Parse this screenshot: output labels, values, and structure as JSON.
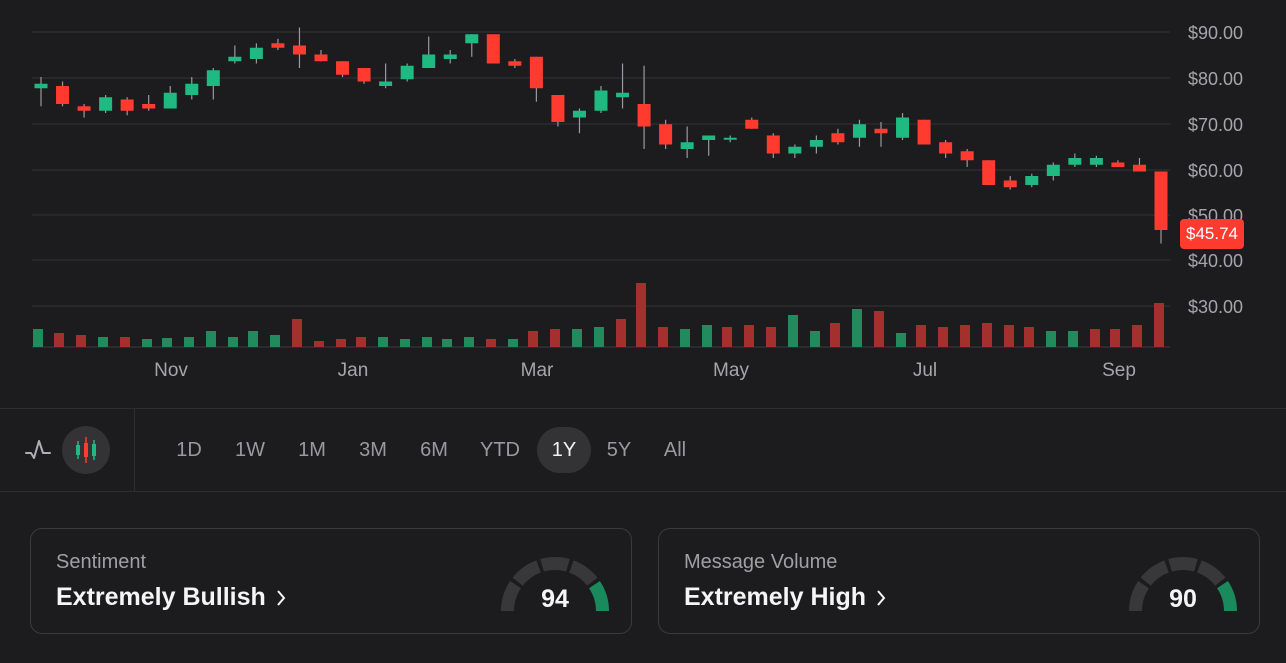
{
  "chart_data": {
    "type": "candlestick",
    "y_ticks": [
      "$90.00",
      "$80.00",
      "$70.00",
      "$60.00",
      "$50.00",
      "$40.00",
      "$30.00"
    ],
    "y_tick_values": [
      90,
      80,
      70,
      60,
      50,
      40,
      30
    ],
    "x_labels": [
      "Nov",
      "Jan",
      "Mar",
      "May",
      "Jul",
      "Sep"
    ],
    "last_price": "$45.74",
    "candles": [
      {
        "o": 77.5,
        "h": 80,
        "l": 73.5,
        "c": 78.5,
        "up": true
      },
      {
        "o": 78,
        "h": 79,
        "l": 73.5,
        "c": 74,
        "up": false
      },
      {
        "o": 73.5,
        "h": 74,
        "l": 71,
        "c": 72.5,
        "up": false
      },
      {
        "o": 72.5,
        "h": 76,
        "l": 72,
        "c": 75.5,
        "up": true
      },
      {
        "o": 75,
        "h": 75.5,
        "l": 71.5,
        "c": 72.5,
        "up": false
      },
      {
        "o": 74,
        "h": 76,
        "l": 72.5,
        "c": 73,
        "up": false
      },
      {
        "o": 73,
        "h": 78,
        "l": 73,
        "c": 76.5,
        "up": true
      },
      {
        "o": 76,
        "h": 80,
        "l": 75,
        "c": 78.5,
        "up": true
      },
      {
        "o": 78,
        "h": 82,
        "l": 75,
        "c": 81.5,
        "up": true
      },
      {
        "o": 83.5,
        "h": 87,
        "l": 83,
        "c": 84.5,
        "up": true
      },
      {
        "o": 84,
        "h": 87.5,
        "l": 83,
        "c": 86.5,
        "up": true
      },
      {
        "o": 87.5,
        "h": 88.5,
        "l": 86,
        "c": 86.5,
        "up": false
      },
      {
        "o": 87,
        "h": 91,
        "l": 82,
        "c": 85,
        "up": false
      },
      {
        "o": 85,
        "h": 86,
        "l": 83.5,
        "c": 83.5,
        "up": false
      },
      {
        "o": 83.5,
        "h": 83.5,
        "l": 80,
        "c": 80.5,
        "up": false
      },
      {
        "o": 82,
        "h": 82,
        "l": 78.5,
        "c": 79,
        "up": false
      },
      {
        "o": 78,
        "h": 83,
        "l": 77.5,
        "c": 79,
        "up": true
      },
      {
        "o": 79.5,
        "h": 83,
        "l": 79,
        "c": 82.5,
        "up": true
      },
      {
        "o": 82,
        "h": 89,
        "l": 82,
        "c": 85,
        "up": true
      },
      {
        "o": 84,
        "h": 86,
        "l": 83,
        "c": 85,
        "up": true
      },
      {
        "o": 87.5,
        "h": 89.5,
        "l": 84.5,
        "c": 89.5,
        "up": true
      },
      {
        "o": 89.5,
        "h": 89.5,
        "l": 83,
        "c": 83,
        "up": false
      },
      {
        "o": 83.5,
        "h": 84,
        "l": 82,
        "c": 82.5,
        "up": false
      },
      {
        "o": 84.5,
        "h": 84.5,
        "l": 74.5,
        "c": 77.5,
        "up": false
      },
      {
        "o": 76,
        "h": 76,
        "l": 69,
        "c": 70,
        "up": false
      },
      {
        "o": 71,
        "h": 73,
        "l": 67.5,
        "c": 72.5,
        "up": true
      },
      {
        "o": 72.5,
        "h": 78,
        "l": 72,
        "c": 77,
        "up": true
      },
      {
        "o": 75.5,
        "h": 83,
        "l": 73,
        "c": 76.5,
        "up": true
      },
      {
        "o": 74,
        "h": 82.5,
        "l": 64,
        "c": 69,
        "up": false
      },
      {
        "o": 69.5,
        "h": 70.5,
        "l": 64,
        "c": 65,
        "up": false
      },
      {
        "o": 64,
        "h": 69,
        "l": 62,
        "c": 65.5,
        "up": true
      },
      {
        "o": 66,
        "h": 67,
        "l": 62.5,
        "c": 67,
        "up": true
      },
      {
        "o": 66.5,
        "h": 67,
        "l": 65.5,
        "c": 66.5,
        "up": true
      },
      {
        "o": 70.5,
        "h": 71,
        "l": 68.5,
        "c": 68.5,
        "up": false
      },
      {
        "o": 67,
        "h": 67.5,
        "l": 62,
        "c": 63,
        "up": false
      },
      {
        "o": 63,
        "h": 65,
        "l": 62,
        "c": 64.5,
        "up": true
      },
      {
        "o": 64.5,
        "h": 67,
        "l": 63,
        "c": 66,
        "up": true
      },
      {
        "o": 67.5,
        "h": 68.5,
        "l": 65,
        "c": 65.5,
        "up": false
      },
      {
        "o": 66.5,
        "h": 70.5,
        "l": 64.5,
        "c": 69.5,
        "up": true
      },
      {
        "o": 68.5,
        "h": 70,
        "l": 64.5,
        "c": 67.5,
        "up": false
      },
      {
        "o": 66.5,
        "h": 72,
        "l": 66,
        "c": 71,
        "up": true
      },
      {
        "o": 70.5,
        "h": 70.5,
        "l": 65,
        "c": 65,
        "up": false
      },
      {
        "o": 65.5,
        "h": 66,
        "l": 62,
        "c": 63,
        "up": false
      },
      {
        "o": 63.5,
        "h": 64,
        "l": 60,
        "c": 61.5,
        "up": false
      },
      {
        "o": 61.5,
        "h": 61.5,
        "l": 56,
        "c": 56,
        "up": false
      },
      {
        "o": 57,
        "h": 58,
        "l": 55,
        "c": 55.5,
        "up": false
      },
      {
        "o": 56,
        "h": 58.5,
        "l": 55.5,
        "c": 58,
        "up": true
      },
      {
        "o": 58,
        "h": 61,
        "l": 57,
        "c": 60.5,
        "up": true
      },
      {
        "o": 60.5,
        "h": 63,
        "l": 60,
        "c": 62,
        "up": true
      },
      {
        "o": 60.5,
        "h": 62.5,
        "l": 60,
        "c": 62,
        "up": true
      },
      {
        "o": 61,
        "h": 61.5,
        "l": 60,
        "c": 60,
        "up": false
      },
      {
        "o": 60.5,
        "h": 62,
        "l": 59,
        "c": 59,
        "up": false
      },
      {
        "o": 59,
        "h": 59,
        "l": 43,
        "c": 46,
        "up": false
      }
    ],
    "volumes": [
      {
        "x": 38,
        "v": 18,
        "up": true
      },
      {
        "x": 59,
        "v": 14,
        "up": false
      },
      {
        "x": 81,
        "v": 12,
        "up": false
      },
      {
        "x": 103,
        "v": 10,
        "up": true
      },
      {
        "x": 125,
        "v": 10,
        "up": false
      },
      {
        "x": 147,
        "v": 8,
        "up": true
      },
      {
        "x": 167,
        "v": 9,
        "up": true
      },
      {
        "x": 189,
        "v": 10,
        "up": true
      },
      {
        "x": 211,
        "v": 16,
        "up": true
      },
      {
        "x": 233,
        "v": 10,
        "up": true
      },
      {
        "x": 253,
        "v": 16,
        "up": true
      },
      {
        "x": 275,
        "v": 12,
        "up": true
      },
      {
        "x": 297,
        "v": 28,
        "up": false
      },
      {
        "x": 319,
        "v": 6,
        "up": false
      },
      {
        "x": 341,
        "v": 8,
        "up": false
      },
      {
        "x": 361,
        "v": 10,
        "up": false
      },
      {
        "x": 383,
        "v": 10,
        "up": true
      },
      {
        "x": 405,
        "v": 8,
        "up": true
      },
      {
        "x": 427,
        "v": 10,
        "up": true
      },
      {
        "x": 447,
        "v": 8,
        "up": true
      },
      {
        "x": 469,
        "v": 10,
        "up": true
      },
      {
        "x": 491,
        "v": 8,
        "up": false
      },
      {
        "x": 513,
        "v": 8,
        "up": true
      },
      {
        "x": 533,
        "v": 16,
        "up": false
      },
      {
        "x": 555,
        "v": 18,
        "up": false
      },
      {
        "x": 577,
        "v": 18,
        "up": true
      },
      {
        "x": 599,
        "v": 20,
        "up": true
      },
      {
        "x": 621,
        "v": 28,
        "up": false
      },
      {
        "x": 641,
        "v": 64,
        "up": false
      },
      {
        "x": 663,
        "v": 20,
        "up": false
      },
      {
        "x": 685,
        "v": 18,
        "up": true
      },
      {
        "x": 707,
        "v": 22,
        "up": true
      },
      {
        "x": 727,
        "v": 20,
        "up": false
      },
      {
        "x": 749,
        "v": 22,
        "up": false
      },
      {
        "x": 771,
        "v": 20,
        "up": false
      },
      {
        "x": 793,
        "v": 32,
        "up": true
      },
      {
        "x": 815,
        "v": 16,
        "up": true
      },
      {
        "x": 835,
        "v": 24,
        "up": false
      },
      {
        "x": 857,
        "v": 38,
        "up": true
      },
      {
        "x": 879,
        "v": 36,
        "up": false
      },
      {
        "x": 901,
        "v": 14,
        "up": true
      },
      {
        "x": 921,
        "v": 22,
        "up": false
      },
      {
        "x": 943,
        "v": 20,
        "up": false
      },
      {
        "x": 965,
        "v": 22,
        "up": false
      },
      {
        "x": 987,
        "v": 24,
        "up": false
      },
      {
        "x": 1009,
        "v": 22,
        "up": false
      },
      {
        "x": 1029,
        "v": 20,
        "up": false
      },
      {
        "x": 1051,
        "v": 16,
        "up": true
      },
      {
        "x": 1073,
        "v": 16,
        "up": true
      },
      {
        "x": 1095,
        "v": 18,
        "up": false
      },
      {
        "x": 1115,
        "v": 18,
        "up": false
      },
      {
        "x": 1137,
        "v": 22,
        "up": false
      },
      {
        "x": 1159,
        "v": 44,
        "up": false
      }
    ]
  },
  "toolbar": {
    "chart_types": [
      {
        "icon": "line-chart-icon",
        "active": false
      },
      {
        "icon": "candlestick-icon",
        "active": true
      }
    ],
    "ranges": [
      "1D",
      "1W",
      "1M",
      "3M",
      "6M",
      "YTD",
      "1Y",
      "5Y",
      "All"
    ],
    "active_range": "1Y"
  },
  "cards": {
    "sentiment": {
      "label": "Sentiment",
      "value": "Extremely Bullish",
      "score": "94",
      "score_value": 94
    },
    "volume": {
      "label": "Message Volume",
      "value": "Extremely High",
      "score": "90",
      "score_value": 90
    }
  },
  "colors": {
    "up": "#1fba82",
    "down": "#ff3b30",
    "up_volume": "#238a5e",
    "down_volume": "#a3302c",
    "gauge_fill": "#1a8a5e",
    "gauge_track": "#38383b"
  }
}
